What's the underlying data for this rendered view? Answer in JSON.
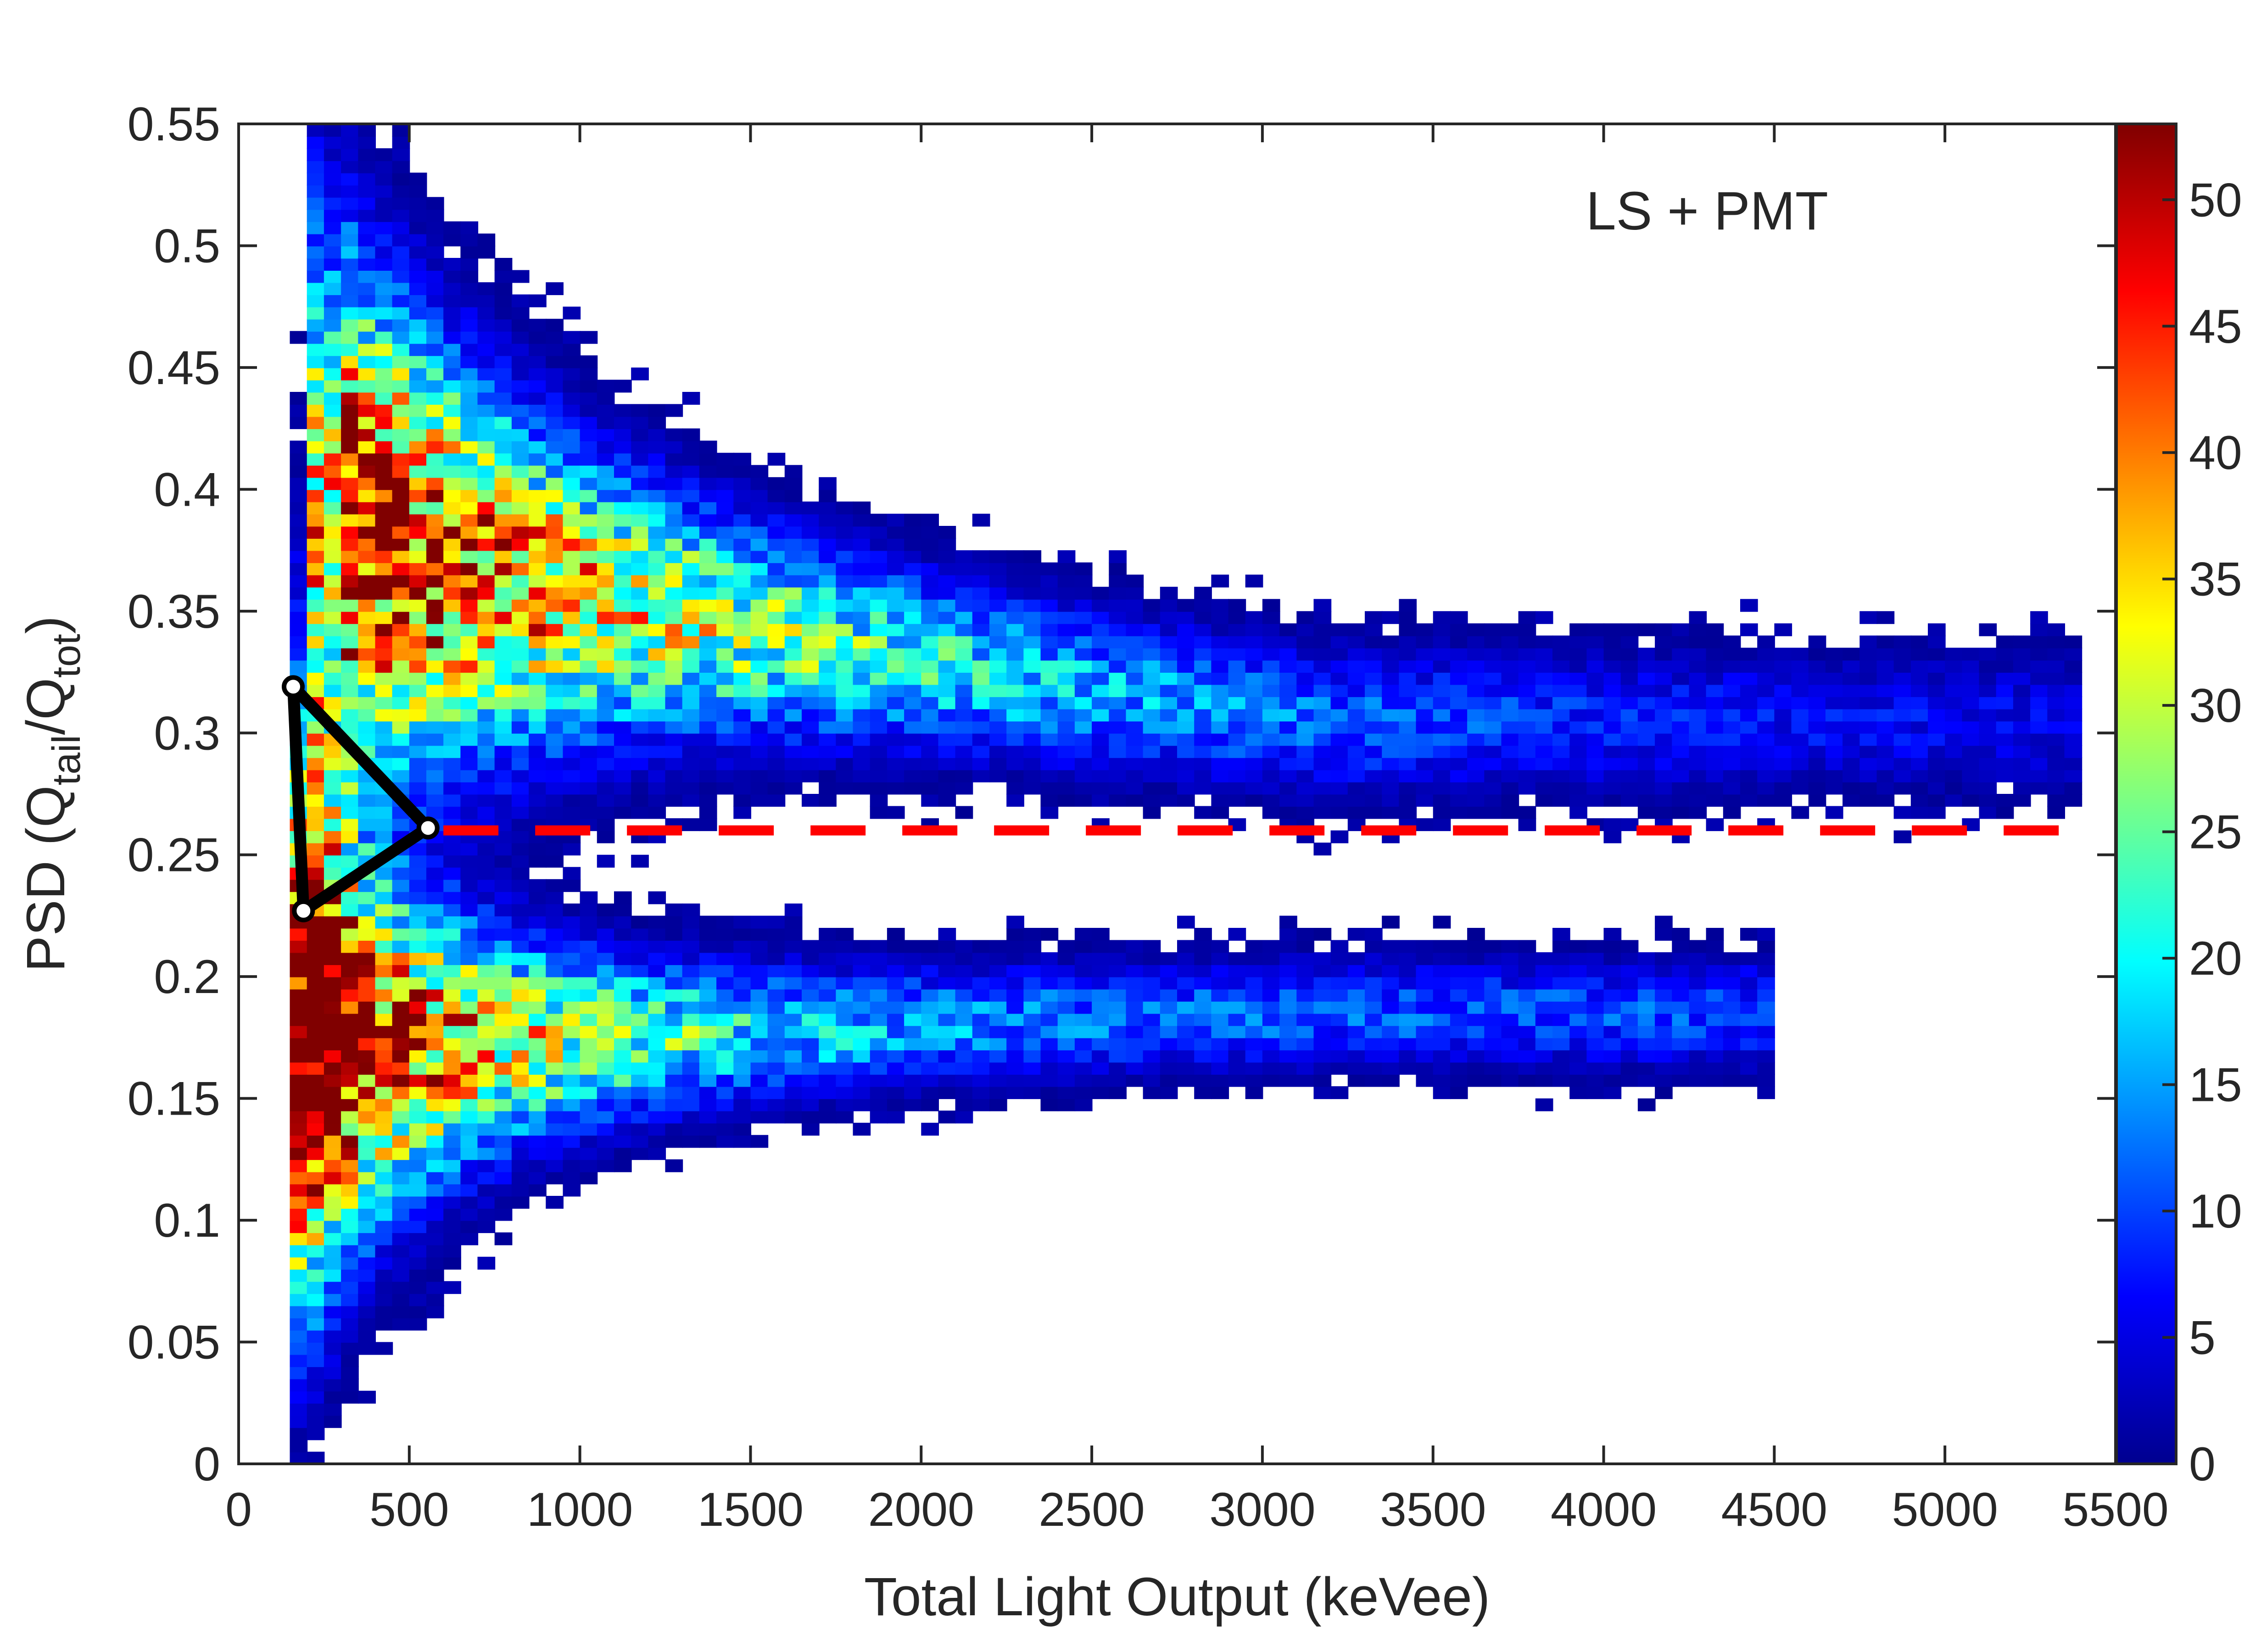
{
  "chart_data": {
    "type": "heatmap",
    "annotation": "LS + PMT",
    "xlabel": "Total Light Output (keVee)",
    "ylabel": {
      "prefix": "PSD (Q",
      "sub1": "tail",
      "mid": "/Q",
      "sub2": "tot",
      "suffix": ")"
    },
    "xlim": [
      0,
      5500
    ],
    "ylim": [
      0,
      0.55
    ],
    "xticks": [
      0,
      500,
      1000,
      1500,
      2000,
      2500,
      3000,
      3500,
      4000,
      4500,
      5000,
      5500
    ],
    "xtick_labels": [
      "0",
      "500",
      "1000",
      "1500",
      "2000",
      "2500",
      "3000",
      "3500",
      "4000",
      "4500",
      "5000",
      "5500"
    ],
    "yticks": [
      0,
      0.05,
      0.1,
      0.15,
      0.2,
      0.25,
      0.3,
      0.35,
      0.4,
      0.45,
      0.5,
      0.55
    ],
    "ytick_labels": [
      "0",
      "0.05",
      "0.1",
      "0.15",
      "0.2",
      "0.25",
      "0.3",
      "0.35",
      "0.4",
      "0.45",
      "0.5",
      "0.55"
    ],
    "colorbar": {
      "colormap": "jet",
      "range": [
        0,
        53
      ],
      "ticks": [
        0,
        5,
        10,
        15,
        20,
        25,
        30,
        35,
        40,
        45,
        50
      ],
      "tick_labels": [
        "0",
        "5",
        "10",
        "15",
        "20",
        "25",
        "30",
        "35",
        "40",
        "45",
        "50"
      ]
    },
    "bin_size": {
      "x": 50,
      "y": 0.005
    },
    "populations": [
      {
        "name": "upper band",
        "x_range": [
          200,
          5400
        ],
        "center_psd_at_low_energy": 0.4,
        "center_psd_at_high_energy": 0.305,
        "peak_count": 45
      },
      {
        "name": "lower band",
        "x_range": [
          150,
          4500
        ],
        "center_psd_at_low_energy": 0.17,
        "center_psd_at_high_energy": 0.185,
        "peak_count": 53
      }
    ],
    "discrimination_line": {
      "psd": 0.26,
      "x_range": [
        600,
        5350
      ],
      "color": "#ff0000",
      "style": "dashed"
    },
    "triangle": {
      "vertices": [
        {
          "x": 160,
          "y": 0.319
        },
        {
          "x": 555,
          "y": 0.261
        },
        {
          "x": 190,
          "y": 0.227
        }
      ],
      "color": "#000000"
    }
  }
}
